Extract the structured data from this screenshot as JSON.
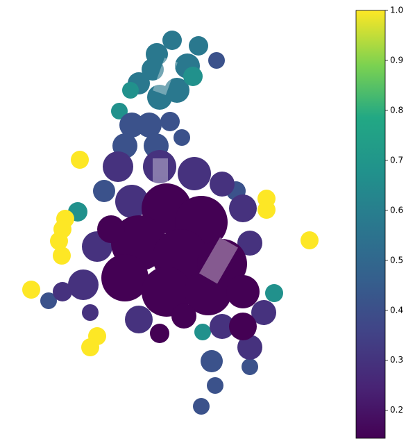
{
  "colorbar": {
    "lim": [
      0.144,
      1.0
    ],
    "ticks": [
      0.2,
      0.3,
      0.4,
      0.5,
      0.6,
      0.7,
      0.8,
      0.9,
      {
        "value": 1.0,
        "label": "1.0"
      }
    ]
  }
}
